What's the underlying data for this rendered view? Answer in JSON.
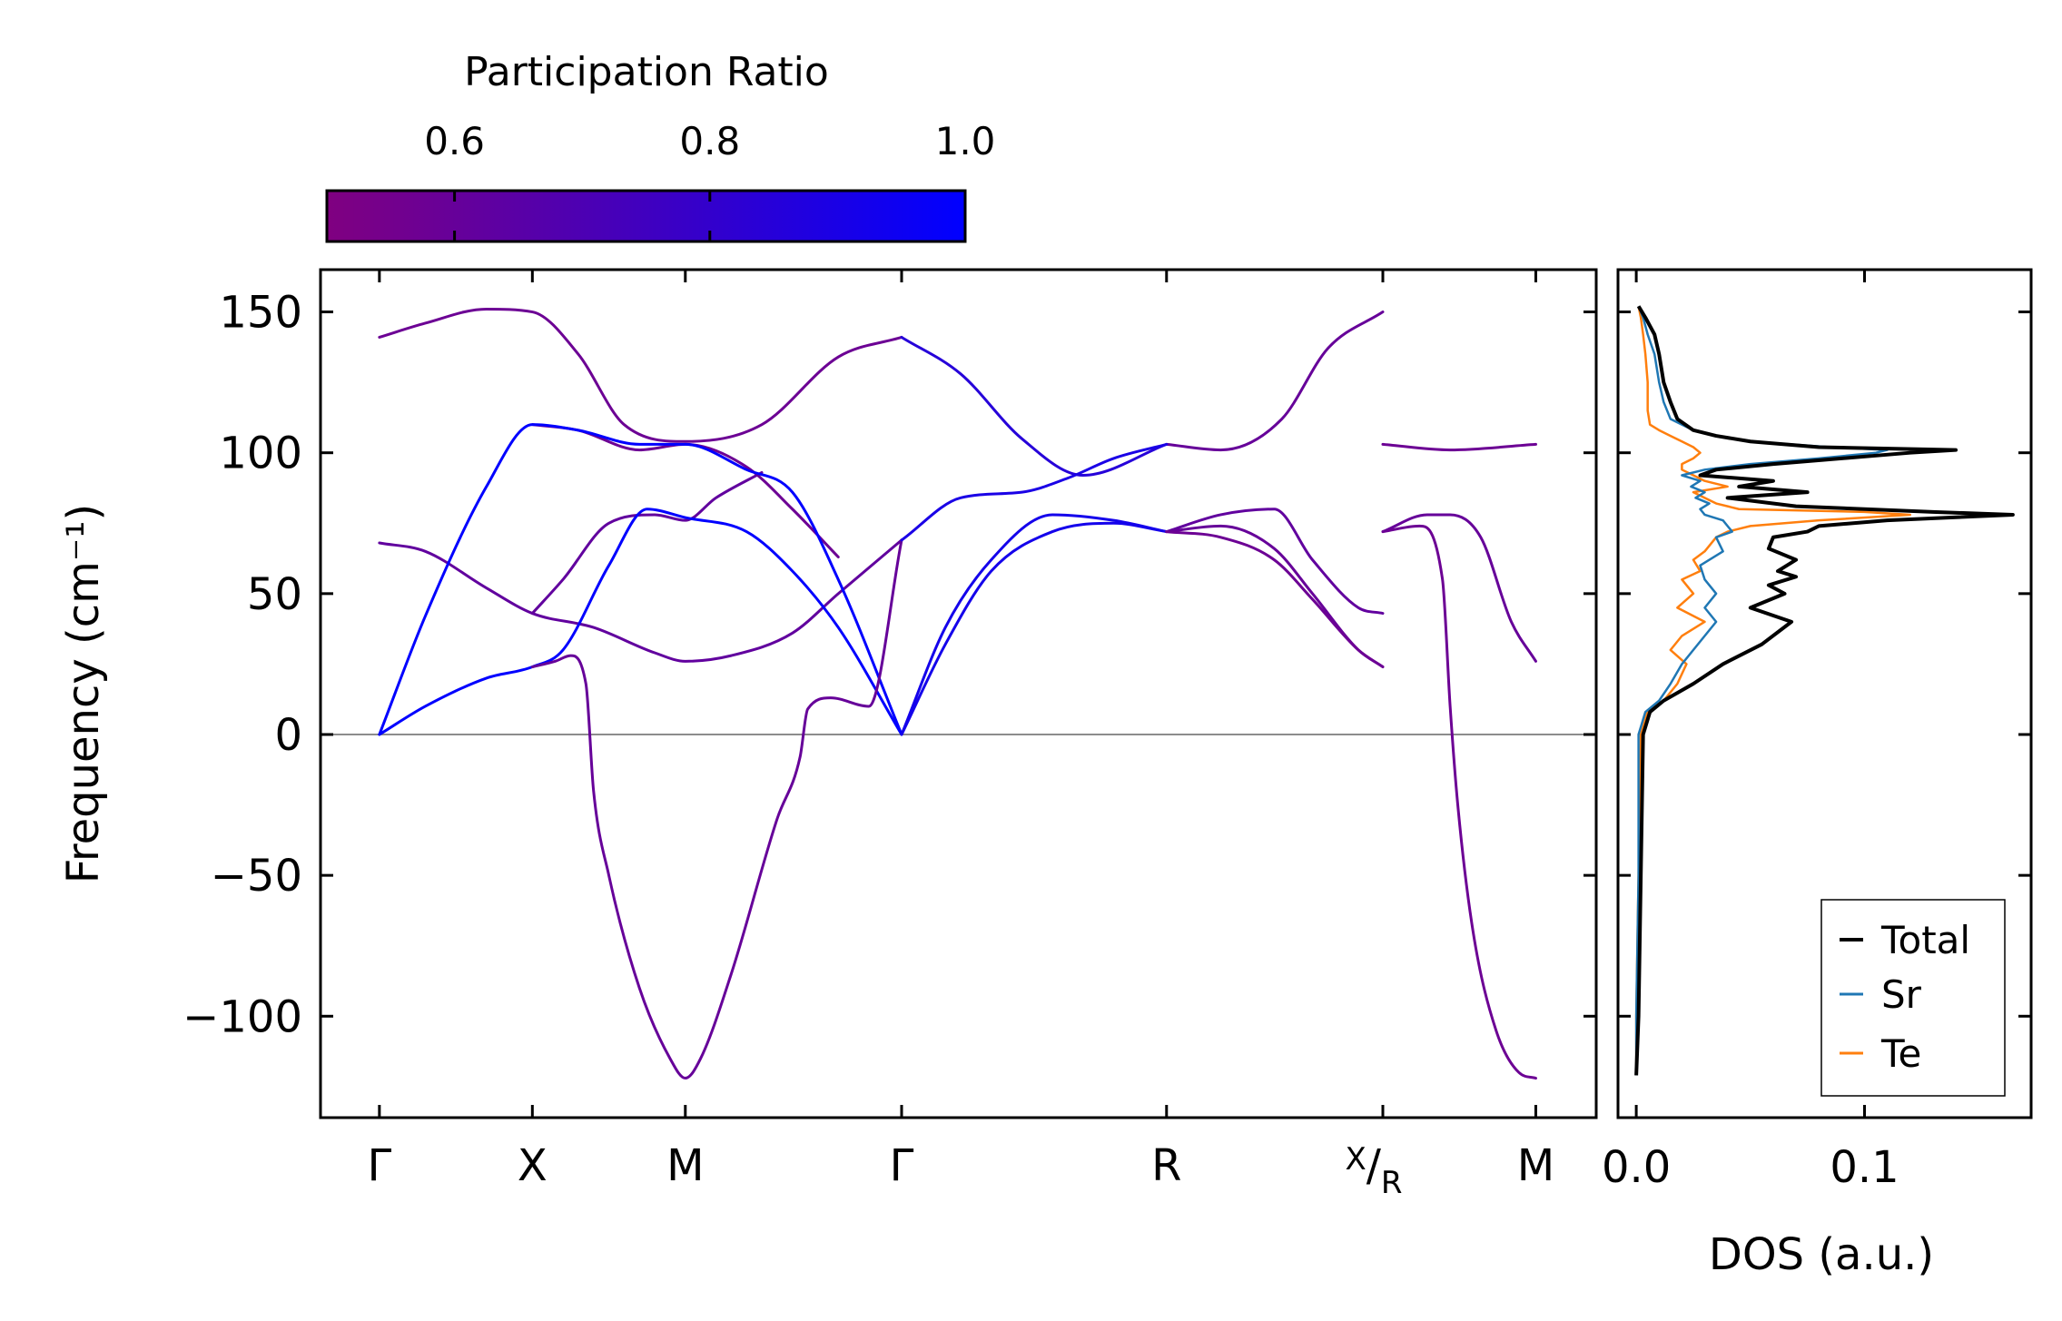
{
  "chart_data": [
    {
      "type": "line",
      "title": "",
      "ylabel": "Frequency (cm⁻¹)",
      "xlabel": "",
      "ylim": [
        -136,
        165
      ],
      "yticks": [
        -100,
        -50,
        0,
        50,
        100,
        150
      ],
      "ytick_labels": [
        "−100",
        "−50",
        "0",
        "50",
        "100",
        "150"
      ],
      "zero_line": 0,
      "high_symmetry_points": [
        {
          "label": "Γ",
          "x": 0.0
        },
        {
          "label": "X",
          "x": 1.0
        },
        {
          "label": "M",
          "x": 2.0
        },
        {
          "label": "Γ",
          "x": 3.414
        },
        {
          "label": "R",
          "x": 5.146
        },
        {
          "label": "X/R",
          "label_top": "X",
          "label_bottom": "R",
          "x": 6.56
        },
        {
          "label": "M",
          "x": 7.56
        }
      ],
      "x_range": [
        -0.385,
        7.955
      ],
      "colorbar": {
        "label": "Participation Ratio",
        "range": [
          0.5,
          1.0
        ],
        "ticks": [
          0.6,
          0.8,
          1.0
        ],
        "tick_labels": [
          "0.6",
          "0.8",
          "1.0"
        ],
        "color_low": "#800080",
        "color_high": "#0000ff"
      },
      "series": [
        {
          "name": "band-1",
          "pr": 0.58,
          "x": [
            0,
            0.3,
            0.7,
            1.0,
            1.3,
            1.6,
            2.0,
            2.5,
            3.0,
            3.414
          ],
          "y": [
            141,
            146,
            151,
            150,
            135,
            110,
            104,
            110,
            134,
            141
          ]
        },
        {
          "name": "band-2",
          "pr": 0.85,
          "x": [
            3.414,
            3.8,
            4.2,
            4.6,
            5.146
          ],
          "y": [
            141,
            128,
            105,
            92,
            103
          ]
        },
        {
          "name": "band-3",
          "pr": 0.6,
          "x": [
            5.146,
            5.5,
            5.9,
            6.2,
            6.56
          ],
          "y": [
            103,
            101,
            112,
            137,
            150
          ]
        },
        {
          "name": "band-4",
          "pr": 0.62,
          "x": [
            0,
            0.3,
            0.7,
            1.0,
            1.4,
            1.8,
            2.0,
            2.3,
            2.7,
            3.0,
            3.414
          ],
          "y": [
            68,
            65,
            52,
            43,
            38,
            29,
            26,
            28,
            36,
            50,
            69
          ]
        },
        {
          "name": "band-5",
          "pr": 0.58,
          "x": [
            1.0,
            1.3,
            1.7,
            2.0,
            2.4,
            2.7,
            3.0
          ],
          "y": [
            110,
            108,
            101,
            103,
            95,
            80,
            63
          ]
        },
        {
          "name": "band-6",
          "pr": 0.62,
          "x": [
            1.0,
            1.2,
            1.5,
            1.8,
            2.0,
            2.2,
            2.5
          ],
          "y": [
            43,
            55,
            75,
            78,
            76,
            84,
            93
          ]
        },
        {
          "name": "band-7",
          "pr": 1.0,
          "x": [
            0,
            0.3,
            0.7,
            1.0,
            1.3,
            1.7,
            2.0,
            2.4,
            2.7,
            3.0,
            3.414
          ],
          "y": [
            0,
            42,
            88,
            110,
            108,
            103,
            103,
            94,
            86,
            55,
            0
          ]
        },
        {
          "name": "band-8",
          "pr": 1.0,
          "x": [
            0,
            0.3,
            0.7,
            1.0,
            1.2,
            1.5,
            1.75,
            2.0,
            2.4,
            2.7,
            3.0,
            3.414
          ],
          "y": [
            0,
            10,
            20,
            24,
            30,
            60,
            80,
            77,
            72,
            58,
            38,
            0
          ]
        },
        {
          "name": "band-9",
          "pr": 0.6,
          "x": [
            1.0,
            1.15,
            1.25,
            1.35,
            1.4,
            1.5,
            1.7,
            1.9,
            2.0,
            2.1,
            2.3,
            2.6,
            2.75,
            2.8,
            2.95,
            3.2,
            3.414
          ],
          "y": [
            24,
            26,
            28,
            18,
            -20,
            -50,
            -90,
            -115,
            -122,
            -115,
            -85,
            -30,
            -8,
            9,
            13,
            10,
            69
          ]
        },
        {
          "name": "band-10",
          "pr": 0.9,
          "x": [
            3.414,
            3.8,
            4.2,
            4.5,
            4.8,
            5.146
          ],
          "y": [
            69,
            84,
            86,
            91,
            98,
            103
          ]
        },
        {
          "name": "band-11",
          "pr": 0.92,
          "x": [
            3.414,
            3.7,
            4.0,
            4.4,
            4.8,
            5.146
          ],
          "y": [
            0,
            38,
            62,
            78,
            76,
            72
          ]
        },
        {
          "name": "band-12",
          "pr": 0.92,
          "x": [
            3.414,
            3.7,
            4.0,
            4.4,
            4.8,
            5.146
          ],
          "y": [
            0,
            32,
            58,
            72,
            75,
            72
          ]
        },
        {
          "name": "band-13",
          "pr": 0.62,
          "x": [
            5.146,
            5.5,
            5.85,
            6.1,
            6.4,
            6.56
          ],
          "y": [
            72,
            78,
            80,
            62,
            45,
            43
          ]
        },
        {
          "name": "band-14",
          "pr": 0.6,
          "x": [
            5.146,
            5.5,
            5.85,
            6.1,
            6.4,
            6.56
          ],
          "y": [
            72,
            74,
            66,
            50,
            30,
            24
          ]
        },
        {
          "name": "band-15",
          "pr": 0.58,
          "x": [
            5.146,
            5.5,
            5.85,
            6.1,
            6.4,
            6.56
          ],
          "y": [
            72,
            70,
            62,
            48,
            30,
            24
          ]
        },
        {
          "name": "band-16",
          "pr": 0.58,
          "x": [
            6.56,
            7.0,
            7.56
          ],
          "y": [
            103,
            101,
            103
          ]
        },
        {
          "name": "band-17",
          "pr": 0.6,
          "x": [
            6.56,
            6.85,
            7.0,
            7.2,
            7.4,
            7.56
          ],
          "y": [
            72,
            78,
            78,
            70,
            40,
            26
          ]
        },
        {
          "name": "band-18",
          "pr": 0.58,
          "x": [
            6.56,
            6.8,
            6.95,
            7.0,
            7.05,
            7.15,
            7.3,
            7.45,
            7.56
          ],
          "y": [
            72,
            74,
            55,
            10,
            -25,
            -70,
            -105,
            -120,
            -122
          ]
        }
      ]
    },
    {
      "type": "line",
      "title": "",
      "xlabel": "DOS (a.u.)",
      "ylabel": "",
      "xlim": [
        -0.008,
        0.173
      ],
      "ylim": [
        -136,
        165
      ],
      "xticks": [
        0.0,
        0.1
      ],
      "xtick_labels": [
        "0.0",
        "0.1"
      ],
      "legend_position": "bottom-right",
      "legend": [
        "Total",
        "Sr",
        "Te"
      ],
      "series": [
        {
          "name": "Total",
          "color": "#000000",
          "frequency": [
            -121,
            -100,
            -50,
            0,
            8,
            12,
            18,
            25,
            32,
            40,
            45,
            50,
            53,
            56,
            58,
            62,
            66,
            70,
            72,
            74,
            76,
            78,
            79,
            81,
            84,
            86,
            88,
            90,
            92,
            94,
            96,
            98,
            100,
            101,
            102,
            104,
            106,
            108,
            112,
            118,
            125,
            135,
            142,
            148,
            152
          ],
          "dos": [
            0,
            0.001,
            0.002,
            0.003,
            0.006,
            0.012,
            0.025,
            0.038,
            0.055,
            0.068,
            0.05,
            0.065,
            0.058,
            0.07,
            0.062,
            0.07,
            0.058,
            0.06,
            0.075,
            0.08,
            0.11,
            0.165,
            0.13,
            0.07,
            0.04,
            0.075,
            0.045,
            0.06,
            0.028,
            0.035,
            0.06,
            0.09,
            0.12,
            0.14,
            0.08,
            0.05,
            0.035,
            0.025,
            0.018,
            0.015,
            0.012,
            0.01,
            0.008,
            0.004,
            0.001
          ]
        },
        {
          "name": "Sr",
          "color": "#1f77b4",
          "frequency": [
            -121,
            -100,
            -50,
            0,
            8,
            12,
            18,
            25,
            30,
            35,
            40,
            45,
            50,
            55,
            60,
            65,
            70,
            72,
            74,
            76,
            78,
            80,
            82,
            84,
            86,
            88,
            90,
            92,
            94,
            96,
            98,
            100,
            101,
            102,
            104,
            106,
            108,
            112,
            118,
            125,
            135,
            142,
            148,
            152
          ],
          "dos": [
            0,
            0.0,
            0.001,
            0.001,
            0.004,
            0.01,
            0.015,
            0.02,
            0.025,
            0.03,
            0.035,
            0.03,
            0.035,
            0.03,
            0.028,
            0.038,
            0.035,
            0.042,
            0.04,
            0.038,
            0.03,
            0.028,
            0.032,
            0.026,
            0.03,
            0.024,
            0.028,
            0.02,
            0.03,
            0.05,
            0.08,
            0.105,
            0.11,
            0.085,
            0.05,
            0.035,
            0.025,
            0.015,
            0.012,
            0.01,
            0.008,
            0.005,
            0.003,
            0.001
          ]
        },
        {
          "name": "Te",
          "color": "#ff7f0e",
          "frequency": [
            -121,
            -100,
            -50,
            0,
            8,
            12,
            18,
            25,
            30,
            35,
            40,
            45,
            50,
            55,
            58,
            62,
            65,
            70,
            72,
            74,
            76,
            78,
            79,
            80,
            82,
            84,
            86,
            88,
            90,
            92,
            94,
            96,
            98,
            100,
            102,
            104,
            106,
            108,
            110,
            115,
            125,
            135,
            142,
            148,
            152
          ],
          "dos": [
            0,
            0.0,
            0.001,
            0.002,
            0.005,
            0.012,
            0.018,
            0.022,
            0.015,
            0.02,
            0.03,
            0.018,
            0.025,
            0.02,
            0.028,
            0.025,
            0.03,
            0.035,
            0.04,
            0.05,
            0.08,
            0.12,
            0.1,
            0.045,
            0.035,
            0.03,
            0.025,
            0.04,
            0.03,
            0.025,
            0.02,
            0.02,
            0.025,
            0.028,
            0.025,
            0.02,
            0.015,
            0.01,
            0.006,
            0.005,
            0.005,
            0.004,
            0.003,
            0.002,
            0.001
          ]
        }
      ]
    }
  ]
}
